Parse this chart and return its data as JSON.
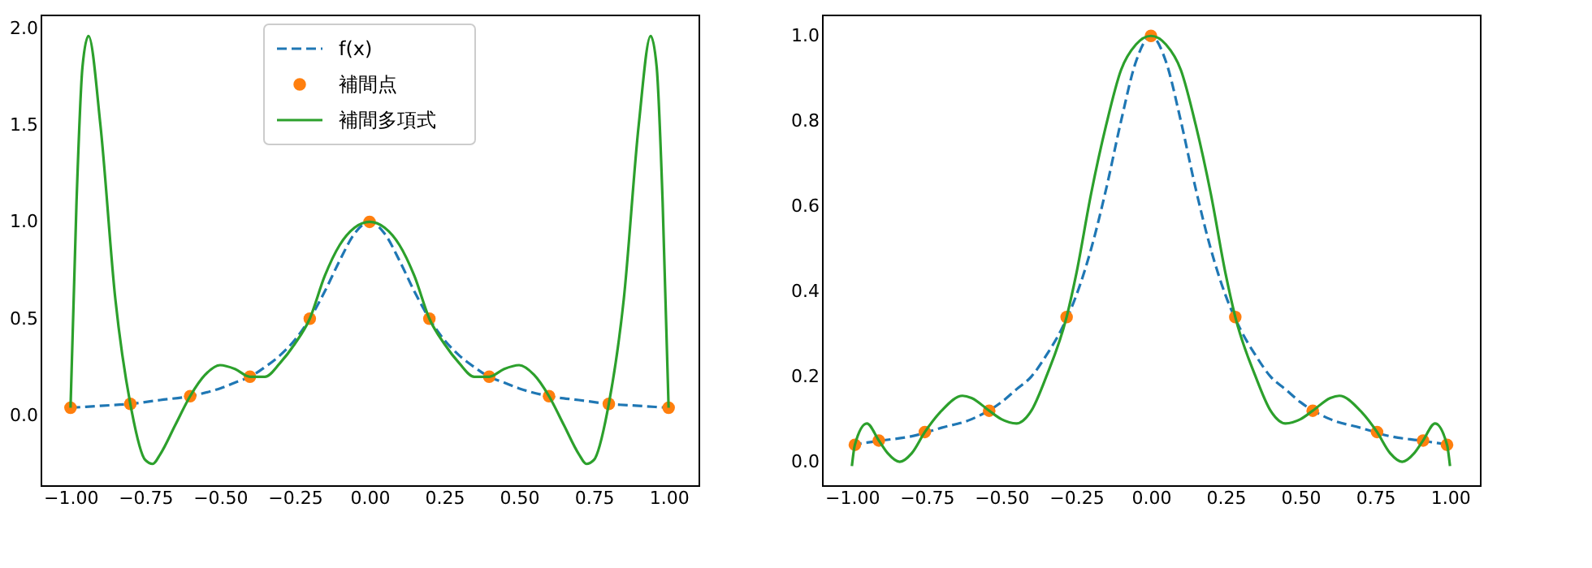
{
  "chart_data": [
    {
      "type": "line",
      "legend": "top",
      "grid": false,
      "xlim": [
        -1.1,
        1.1
      ],
      "ylim": [
        -0.36,
        2.07
      ],
      "xticks": [
        {
          "value": -1,
          "label": "−1.00"
        },
        {
          "value": -0.75,
          "label": "−0.75"
        },
        {
          "value": -0.5,
          "label": "−0.50"
        },
        {
          "value": -0.25,
          "label": "−0.25"
        },
        {
          "value": 0,
          "label": "0.00"
        },
        {
          "value": 0.25,
          "label": "0.25"
        },
        {
          "value": 0.5,
          "label": "0.50"
        },
        {
          "value": 0.75,
          "label": "0.75"
        },
        {
          "value": 1,
          "label": "1.00"
        }
      ],
      "yticks": [
        {
          "value": 0,
          "label": "0.0"
        },
        {
          "value": 0.5,
          "label": "0.5"
        },
        {
          "value": 1,
          "label": "1.0"
        },
        {
          "value": 1.5,
          "label": "1.5"
        },
        {
          "value": 2,
          "label": "2.0"
        }
      ],
      "series": [
        {
          "name": "f(x)",
          "type": "line",
          "line_style": "dashed",
          "color": "#1f77b4",
          "x": [
            -1,
            -0.9,
            -0.8,
            -0.7,
            -0.6,
            -0.5,
            -0.45,
            -0.4,
            -0.35,
            -0.3,
            -0.25,
            -0.2,
            -0.15,
            -0.1,
            -0.05,
            0,
            0.05,
            0.1,
            0.15,
            0.2,
            0.25,
            0.3,
            0.35,
            0.4,
            0.45,
            0.5,
            0.6,
            0.7,
            0.8,
            0.9,
            1
          ],
          "values": [
            0.04,
            0.05,
            0.06,
            0.08,
            0.1,
            0.14,
            0.17,
            0.2,
            0.25,
            0.31,
            0.39,
            0.5,
            0.64,
            0.8,
            0.94,
            1,
            0.94,
            0.8,
            0.64,
            0.5,
            0.39,
            0.31,
            0.25,
            0.2,
            0.17,
            0.14,
            0.1,
            0.08,
            0.06,
            0.05,
            0.04
          ]
        },
        {
          "name": "補間点",
          "type": "scatter",
          "marker": "circle",
          "color": "#ff7f0e",
          "x": [
            -1,
            -0.8,
            -0.6,
            -0.4,
            -0.2,
            0,
            0.2,
            0.4,
            0.6,
            0.8,
            1
          ],
          "values": [
            0.04,
            0.06,
            0.1,
            0.2,
            0.5,
            1,
            0.5,
            0.2,
            0.1,
            0.06,
            0.04
          ]
        },
        {
          "name": "補間多項式",
          "type": "line",
          "line_style": "solid",
          "color": "#2ca02c",
          "x": [
            -1,
            -0.98,
            -0.96,
            -0.94,
            -0.9,
            -0.85,
            -0.8,
            -0.75,
            -0.725,
            -0.7,
            -0.65,
            -0.6,
            -0.55,
            -0.5,
            -0.45,
            -0.4,
            -0.35,
            -0.3,
            -0.25,
            -0.2,
            -0.15,
            -0.1,
            -0.05,
            0,
            0.05,
            0.1,
            0.15,
            0.2,
            0.25,
            0.3,
            0.35,
            0.4,
            0.45,
            0.5,
            0.55,
            0.6,
            0.65,
            0.7,
            0.725,
            0.75,
            0.8,
            0.85,
            0.9,
            0.94,
            0.96,
            0.98,
            1
          ],
          "values": [
            0.04,
            1.1,
            1.8,
            1.96,
            1.5,
            0.6,
            0.06,
            -0.23,
            -0.25,
            -0.2,
            -0.05,
            0.1,
            0.21,
            0.26,
            0.24,
            0.2,
            0.2,
            0.27,
            0.37,
            0.5,
            0.72,
            0.88,
            0.97,
            1,
            0.97,
            0.88,
            0.72,
            0.5,
            0.37,
            0.27,
            0.2,
            0.2,
            0.24,
            0.26,
            0.21,
            0.1,
            -0.05,
            -0.2,
            -0.25,
            -0.23,
            0.06,
            0.6,
            1.5,
            1.96,
            1.8,
            1.1,
            0.04
          ]
        }
      ]
    },
    {
      "type": "line",
      "grid": false,
      "xlim": [
        -1.1,
        1.1
      ],
      "ylim": [
        -0.055,
        1.05
      ],
      "xticks": [
        {
          "value": -1,
          "label": "−1.00"
        },
        {
          "value": -0.75,
          "label": "−0.75"
        },
        {
          "value": -0.5,
          "label": "−0.50"
        },
        {
          "value": -0.25,
          "label": "−0.25"
        },
        {
          "value": 0,
          "label": "0.00"
        },
        {
          "value": 0.25,
          "label": "0.25"
        },
        {
          "value": 0.5,
          "label": "0.50"
        },
        {
          "value": 0.75,
          "label": "0.75"
        },
        {
          "value": 1,
          "label": "1.00"
        }
      ],
      "yticks": [
        {
          "value": 0,
          "label": "0.0"
        },
        {
          "value": 0.2,
          "label": "0.2"
        },
        {
          "value": 0.4,
          "label": "0.4"
        },
        {
          "value": 0.6,
          "label": "0.6"
        },
        {
          "value": 0.8,
          "label": "0.8"
        },
        {
          "value": 1,
          "label": "1.0"
        }
      ],
      "series": [
        {
          "type": "line",
          "line_style": "dashed",
          "color": "#1f77b4",
          "x": [
            -1,
            -0.9,
            -0.8,
            -0.7,
            -0.6,
            -0.5,
            -0.45,
            -0.4,
            -0.35,
            -0.3,
            -0.25,
            -0.2,
            -0.15,
            -0.1,
            -0.05,
            0,
            0.05,
            0.1,
            0.15,
            0.2,
            0.25,
            0.3,
            0.35,
            0.4,
            0.45,
            0.5,
            0.6,
            0.7,
            0.8,
            0.9,
            1
          ],
          "values": [
            0.04,
            0.05,
            0.06,
            0.08,
            0.1,
            0.14,
            0.17,
            0.2,
            0.25,
            0.31,
            0.39,
            0.5,
            0.64,
            0.8,
            0.94,
            1,
            0.94,
            0.8,
            0.64,
            0.5,
            0.39,
            0.31,
            0.25,
            0.2,
            0.17,
            0.14,
            0.1,
            0.08,
            0.06,
            0.05,
            0.04
          ]
        },
        {
          "type": "scatter",
          "marker": "circle",
          "color": "#ff7f0e",
          "x": [
            -0.99,
            -0.91,
            -0.756,
            -0.541,
            -0.282,
            0,
            0.282,
            0.541,
            0.756,
            0.91,
            0.99
          ],
          "values": [
            0.04,
            0.05,
            0.07,
            0.12,
            0.34,
            1,
            0.34,
            0.12,
            0.07,
            0.05,
            0.04
          ]
        },
        {
          "type": "line",
          "line_style": "solid",
          "color": "#2ca02c",
          "x": [
            -1,
            -0.99,
            -0.95,
            -0.91,
            -0.88,
            -0.84,
            -0.8,
            -0.756,
            -0.7,
            -0.63,
            -0.6,
            -0.541,
            -0.5,
            -0.45,
            -0.4,
            -0.35,
            -0.282,
            -0.25,
            -0.2,
            -0.15,
            -0.1,
            -0.05,
            0,
            0.05,
            0.1,
            0.15,
            0.2,
            0.25,
            0.282,
            0.35,
            0.4,
            0.45,
            0.5,
            0.541,
            0.6,
            0.63,
            0.7,
            0.756,
            0.8,
            0.84,
            0.88,
            0.91,
            0.95,
            0.99,
            1
          ],
          "values": [
            -0.01,
            0.04,
            0.09,
            0.05,
            0.02,
            0.0,
            0.02,
            0.07,
            0.12,
            0.155,
            0.15,
            0.12,
            0.1,
            0.09,
            0.12,
            0.2,
            0.34,
            0.44,
            0.63,
            0.79,
            0.92,
            0.98,
            1,
            0.98,
            0.92,
            0.79,
            0.63,
            0.44,
            0.34,
            0.2,
            0.12,
            0.09,
            0.1,
            0.12,
            0.15,
            0.155,
            0.12,
            0.07,
            0.02,
            0.0,
            0.02,
            0.05,
            0.09,
            0.04,
            -0.01
          ]
        }
      ]
    }
  ]
}
